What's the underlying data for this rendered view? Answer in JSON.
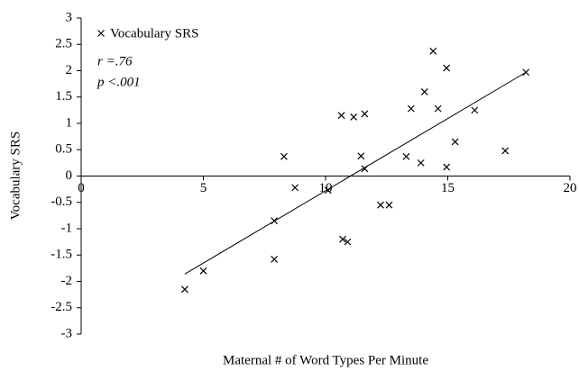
{
  "chart_data": {
    "type": "scatter",
    "xlabel": "Maternal # of Word Types Per Minute",
    "ylabel": "Vocabulary SRS",
    "annotations": [
      "r =.76",
      "p <.001"
    ],
    "series": [
      {
        "name": "Vocabulary SRS",
        "color": "#000000",
        "x": [
          4.24,
          5.0,
          7.9,
          7.9,
          8.3,
          8.75,
          10.1,
          10.65,
          10.7,
          10.9,
          11.15,
          11.45,
          11.6,
          11.6,
          12.25,
          12.6,
          13.3,
          13.5,
          13.9,
          14.05,
          14.4,
          14.6,
          14.95,
          14.95,
          15.3,
          16.1,
          17.35,
          18.2
        ],
        "values": [
          -2.15,
          -1.8,
          -0.85,
          -1.58,
          0.37,
          -0.22,
          -0.27,
          1.15,
          -1.2,
          -1.25,
          1.12,
          0.38,
          1.18,
          0.14,
          -0.55,
          -0.55,
          0.37,
          1.28,
          0.25,
          1.6,
          2.37,
          1.28,
          2.05,
          0.17,
          0.65,
          1.25,
          0.48,
          1.97
        ]
      }
    ],
    "trendline": {
      "x": [
        4.24,
        18.2
      ],
      "values": [
        -1.86,
        1.97
      ]
    },
    "xlim": [
      0,
      20
    ],
    "xticks": [
      0,
      5,
      10,
      15,
      20
    ],
    "ylim": [
      -3,
      3
    ],
    "yticks": [
      -3,
      -2.5,
      -2,
      -1.5,
      -1,
      -0.5,
      0,
      0.5,
      1,
      1.5,
      2,
      2.5,
      3
    ]
  }
}
